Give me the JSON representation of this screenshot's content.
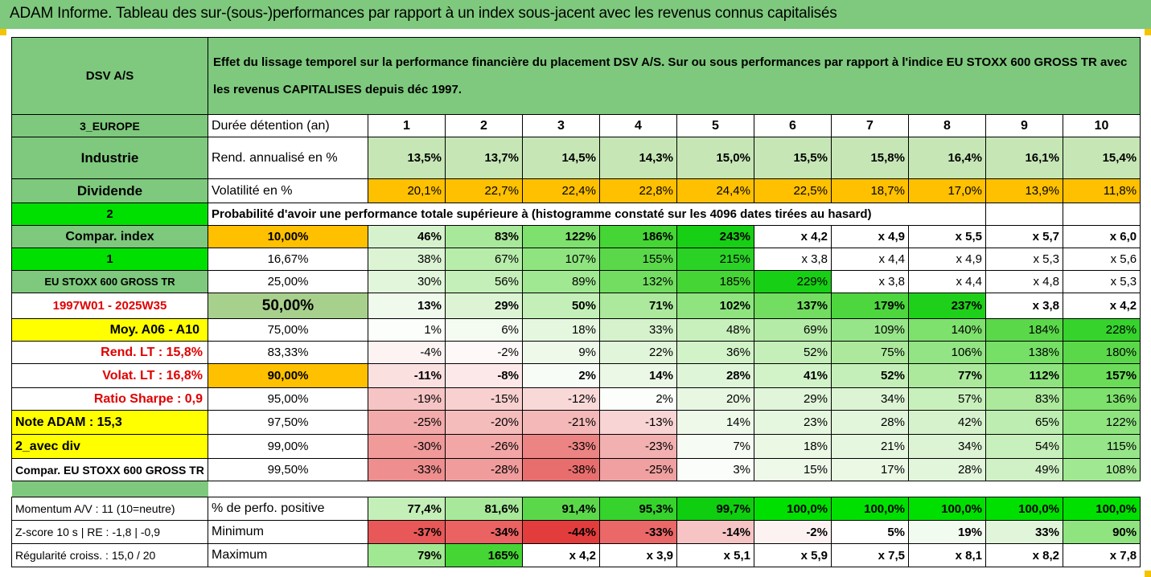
{
  "title": "ADAM Informe. Tableau des sur-(sous-)performances par rapport à un index sous-jacent avec les revenus connus capitalisés",
  "header": {
    "company": "DSV A/S",
    "description": "Effet du lissage temporel sur la performance financière du placement DSV A/S. Sur ou sous performances par rapport à l'indice EU STOXX 600 GROSS TR avec les revenus CAPITALISES depuis déc 1997."
  },
  "left": {
    "region": "3_EUROPE",
    "sector": "Industrie",
    "dividend": "Dividende",
    "code2": "2",
    "compar_index": "Compar. index",
    "code1": "1",
    "index_name": "EU STOXX 600 GROSS TR",
    "period": "1997W01 - 2025W35",
    "moy": "Moy. A06 - A10",
    "rend_lt": "Rend. LT :   15,8%",
    "volat_lt": "Volat. LT :   16,8%",
    "sharpe": "Ratio Sharpe :    0,9",
    "note": "Note ADAM : 15,3",
    "avec_div": "2_avec div",
    "compar_full": "Compar. EU STOXX 600 GROSS TR",
    "momentum": "Momentum A/V : 11 (10=neutre)",
    "zscore": "Z-score 10 s  | RE : -1,8 | -0,9",
    "regularite": "Régularité croiss. : 15,0 / 20"
  },
  "duree_label": "Durée détention (an)",
  "years": [
    "1",
    "2",
    "3",
    "4",
    "5",
    "6",
    "7",
    "8",
    "9",
    "10"
  ],
  "rend_label": "Rend. annualisé en %",
  "rend": [
    "13,5%",
    "13,7%",
    "14,5%",
    "14,3%",
    "15,0%",
    "15,5%",
    "15,8%",
    "16,4%",
    "16,1%",
    "15,4%"
  ],
  "vol_label": "Volatilité en %",
  "vol": [
    "20,1%",
    "22,7%",
    "22,4%",
    "22,8%",
    "24,4%",
    "22,5%",
    "18,7%",
    "17,0%",
    "13,9%",
    "11,8%"
  ],
  "prob_label": "Probabilité d'avoir une performance totale supérieure à (histogramme constaté sur les 4096 dates tirées au hasard)",
  "prob_rows": [
    {
      "p": "10,00%",
      "v": [
        "46%",
        "83%",
        "122%",
        "186%",
        "243%",
        "x 4,2",
        "x 4,9",
        "x 5,5",
        "x 5,7",
        "x 6,0"
      ]
    },
    {
      "p": "16,67%",
      "v": [
        "38%",
        "67%",
        "107%",
        "155%",
        "215%",
        "x 3,8",
        "x 4,4",
        "x 4,9",
        "x 5,3",
        "x 5,6"
      ]
    },
    {
      "p": "25,00%",
      "v": [
        "30%",
        "56%",
        "89%",
        "132%",
        "185%",
        "229%",
        "x 3,8",
        "x 4,4",
        "x 4,8",
        "x 5,3"
      ]
    },
    {
      "p": "50,00%",
      "v": [
        "13%",
        "29%",
        "50%",
        "71%",
        "102%",
        "137%",
        "179%",
        "237%",
        "x 3,8",
        "x 4,2"
      ]
    },
    {
      "p": "75,00%",
      "v": [
        "1%",
        "6%",
        "18%",
        "33%",
        "48%",
        "69%",
        "109%",
        "140%",
        "184%",
        "228%"
      ]
    },
    {
      "p": "83,33%",
      "v": [
        "-4%",
        "-2%",
        "9%",
        "22%",
        "36%",
        "52%",
        "75%",
        "106%",
        "138%",
        "180%"
      ]
    },
    {
      "p": "90,00%",
      "v": [
        "-11%",
        "-8%",
        "2%",
        "14%",
        "28%",
        "41%",
        "52%",
        "77%",
        "112%",
        "157%"
      ]
    },
    {
      "p": "95,00%",
      "v": [
        "-19%",
        "-15%",
        "-12%",
        "2%",
        "20%",
        "29%",
        "34%",
        "57%",
        "83%",
        "136%"
      ]
    },
    {
      "p": "97,50%",
      "v": [
        "-25%",
        "-20%",
        "-21%",
        "-13%",
        "14%",
        "23%",
        "28%",
        "42%",
        "65%",
        "122%"
      ]
    },
    {
      "p": "99,00%",
      "v": [
        "-30%",
        "-26%",
        "-33%",
        "-23%",
        "7%",
        "18%",
        "21%",
        "34%",
        "54%",
        "115%"
      ]
    },
    {
      "p": "99,50%",
      "v": [
        "-33%",
        "-28%",
        "-38%",
        "-25%",
        "3%",
        "15%",
        "17%",
        "28%",
        "49%",
        "108%"
      ]
    }
  ],
  "pos_label": "% de perfo. positive",
  "pos": [
    "77,4%",
    "81,6%",
    "91,4%",
    "95,3%",
    "99,7%",
    "100,0%",
    "100,0%",
    "100,0%",
    "100,0%",
    "100,0%"
  ],
  "min_label": "Minimum",
  "min": [
    "-37%",
    "-34%",
    "-44%",
    "-33%",
    "-14%",
    "-2%",
    "5%",
    "19%",
    "33%",
    "90%"
  ],
  "max_label": "Maximum",
  "max": [
    "79%",
    "165%",
    "x 4,2",
    "x 3,9",
    "x 5,1",
    "x 5,9",
    "x 7,5",
    "x 8,1",
    "x 8,2",
    "x 7,8"
  ],
  "colors": {
    "title_bar": "#7ec97d",
    "label_green": "#7ec97d",
    "bright_green": "#00e000",
    "yellow": "#ffff00",
    "orange": "#ffc000",
    "red_text": "#e00000"
  }
}
